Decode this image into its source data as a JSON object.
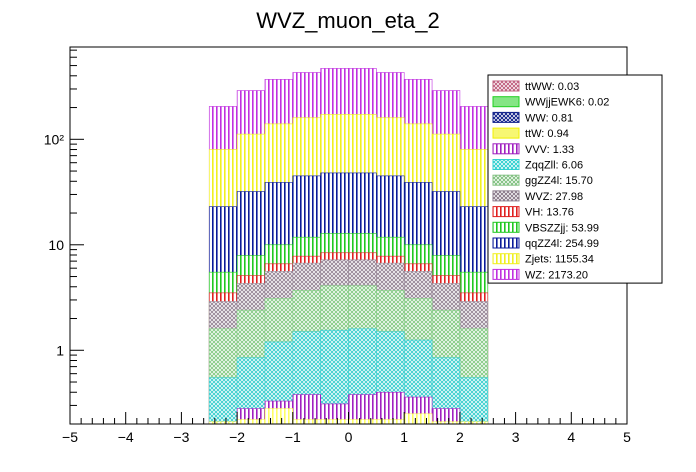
{
  "chart_data": {
    "type": "bar",
    "title": "WVZ_muon_eta_2",
    "xlabel": "",
    "ylabel": "",
    "xlim": [
      -5,
      5
    ],
    "ylim": [
      0.2,
      750
    ],
    "yscale": "log",
    "stacked": true,
    "x_ticks": [
      "−5",
      "−4",
      "−3",
      "−2",
      "−1",
      "0",
      "1",
      "2",
      "3",
      "4",
      "5"
    ],
    "y_ticks": [
      {
        "value": 1,
        "label": "1"
      },
      {
        "value": 10,
        "label": "10"
      },
      {
        "value": 100,
        "label": "10²"
      }
    ],
    "bin_edges": [
      -2.5,
      -2.0,
      -1.5,
      -1.0,
      -0.5,
      0.0,
      0.5,
      1.0,
      1.5,
      2.0,
      2.5
    ],
    "stack_top_cumulative": [
      {
        "name": "ttW",
        "color": "#ffff66",
        "values": [
          0.21,
          0.22,
          0.28,
          0.22,
          0.22,
          0.22,
          0.22,
          0.25,
          0.21,
          0.21
        ]
      },
      {
        "name": "VVV",
        "color": "#a020c0",
        "values": [
          0.21,
          0.28,
          0.33,
          0.38,
          0.31,
          0.38,
          0.4,
          0.36,
          0.28,
          0.21
        ]
      },
      {
        "name": "ZqqZll",
        "color": "#40d0d0",
        "values": [
          0.55,
          0.85,
          1.2,
          1.5,
          1.55,
          1.6,
          1.5,
          1.25,
          0.85,
          0.55
        ]
      },
      {
        "name": "ggZZ4l",
        "color": "#88cc88",
        "values": [
          1.6,
          2.4,
          3.1,
          3.7,
          4.1,
          4.1,
          3.7,
          3.1,
          2.4,
          1.6
        ]
      },
      {
        "name": "WVZ",
        "color": "#9a8a9a",
        "values": [
          2.9,
          4.3,
          5.6,
          6.7,
          7.2,
          7.2,
          6.7,
          5.6,
          4.3,
          2.9
        ]
      },
      {
        "name": "VH",
        "color": "#e02020",
        "values": [
          3.5,
          5.1,
          6.6,
          7.8,
          8.4,
          8.4,
          7.8,
          6.6,
          5.1,
          3.5
        ]
      },
      {
        "name": "VBSZZjj",
        "color": "#20c820",
        "values": [
          5.5,
          7.9,
          10.0,
          11.8,
          12.8,
          12.8,
          11.8,
          10.0,
          7.9,
          5.5
        ]
      },
      {
        "name": "qqZZ4l",
        "color": "#0a1a9a",
        "values": [
          23,
          32,
          39,
          45,
          48,
          48,
          45,
          39,
          32,
          23
        ]
      },
      {
        "name": "Zjets",
        "color": "#f0f020",
        "values": [
          80,
          112,
          140,
          160,
          172,
          172,
          160,
          140,
          112,
          80
        ]
      },
      {
        "name": "WZ",
        "color": "#c030e0",
        "values": [
          205,
          290,
          370,
          430,
          470,
          470,
          430,
          370,
          290,
          205
        ]
      }
    ],
    "legend_position": "top-right",
    "legend": [
      {
        "label": "ttWW: 0.03",
        "color": "#c06080",
        "pattern": "cross"
      },
      {
        "label": "WWjjEWK6: 0.02",
        "color": "#20d020",
        "pattern": "solid-light"
      },
      {
        "label": "WW: 0.81",
        "color": "#10208a",
        "pattern": "cross"
      },
      {
        "label": "ttW: 0.94",
        "color": "#f0f000",
        "pattern": "solid-light"
      },
      {
        "label": "VVV: 1.33",
        "color": "#a020c0",
        "pattern": "vlines"
      },
      {
        "label": "ZqqZll: 6.06",
        "color": "#30d0d0",
        "pattern": "cross"
      },
      {
        "label": "ggZZ4l: 15.70",
        "color": "#80c080",
        "pattern": "cross"
      },
      {
        "label": "WVZ: 27.98",
        "color": "#8a7a8a",
        "pattern": "cross"
      },
      {
        "label": "VH: 13.76",
        "color": "#e02020",
        "pattern": "vlines"
      },
      {
        "label": "VBSZZjj: 53.99",
        "color": "#20c820",
        "pattern": "vlines"
      },
      {
        "label": "qqZZ4l: 254.99",
        "color": "#0a1a9a",
        "pattern": "vlines"
      },
      {
        "label": "Zjets: 1155.34",
        "color": "#f0f020",
        "pattern": "vlines"
      },
      {
        "label": "WZ: 2173.20",
        "color": "#c030e0",
        "pattern": "vlines"
      }
    ]
  }
}
